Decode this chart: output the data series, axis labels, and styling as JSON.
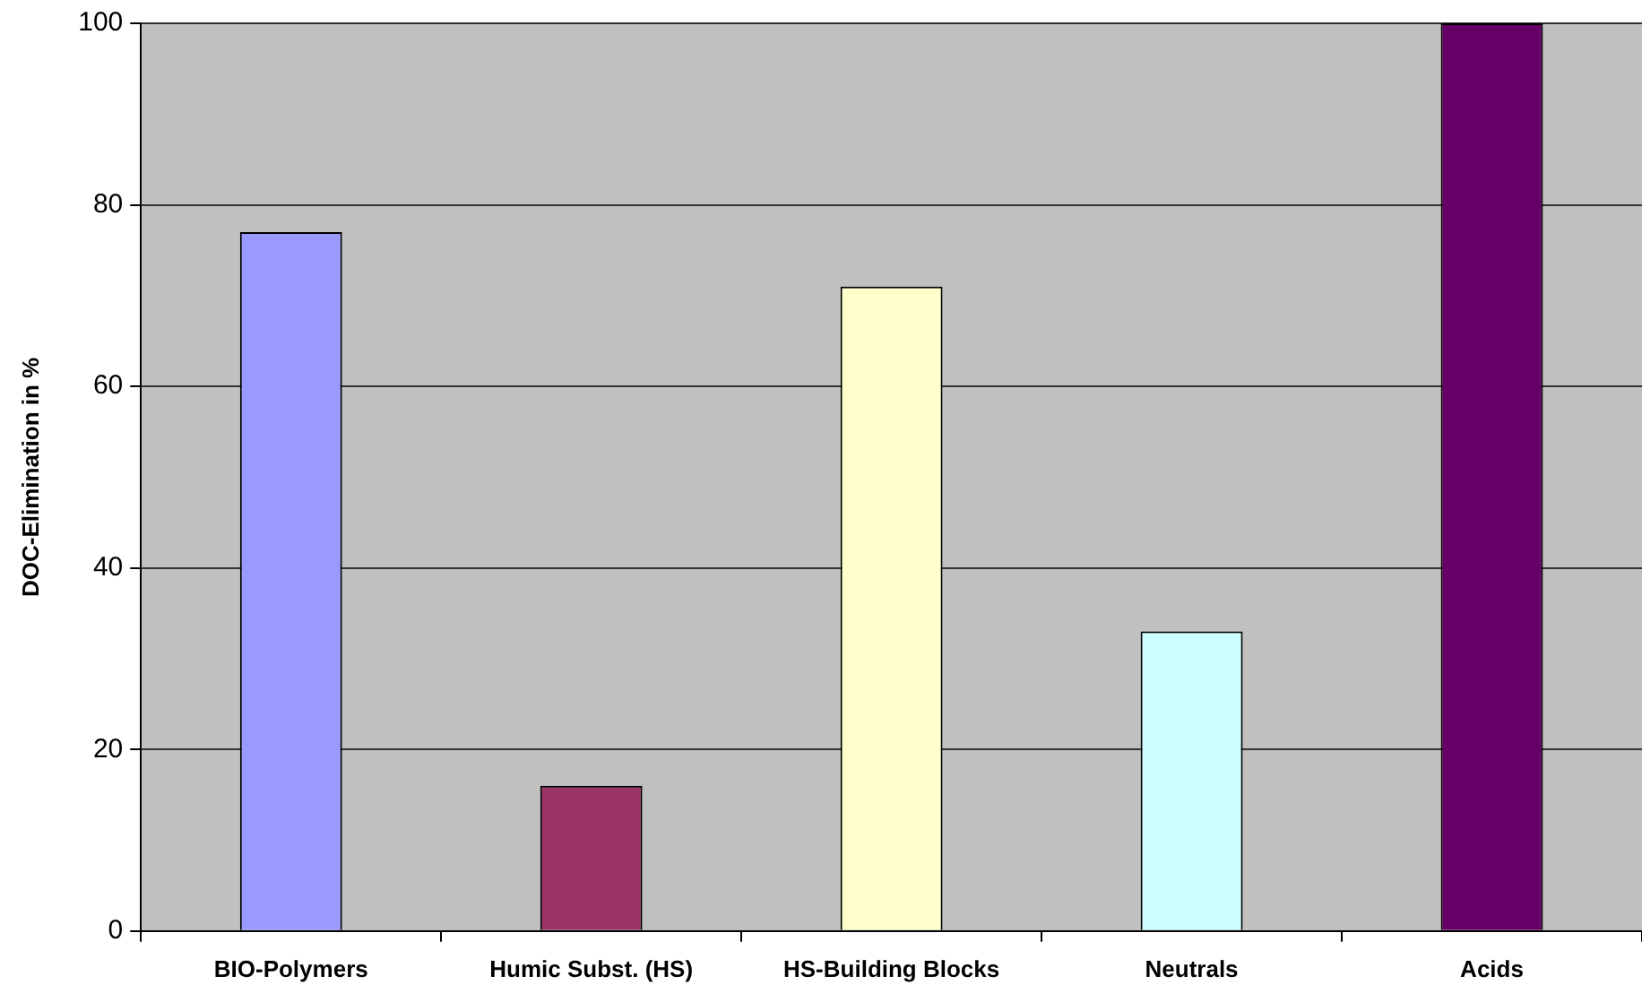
{
  "chart_data": {
    "type": "bar",
    "ylabel": "DOC-Elimination in %",
    "categories": [
      "BIO-Polymers",
      "Humic Subst. (HS)",
      "HS-Building Blocks",
      "Neutrals",
      "Acids"
    ],
    "values": [
      77,
      16,
      71,
      33,
      100
    ],
    "colors": [
      "#9999ff",
      "#993366",
      "#ffffcc",
      "#ccffff",
      "#660066"
    ],
    "ylim": [
      0,
      100
    ],
    "yticks": [
      0,
      20,
      40,
      60,
      80,
      100
    ],
    "grid": "y",
    "legend": false
  }
}
